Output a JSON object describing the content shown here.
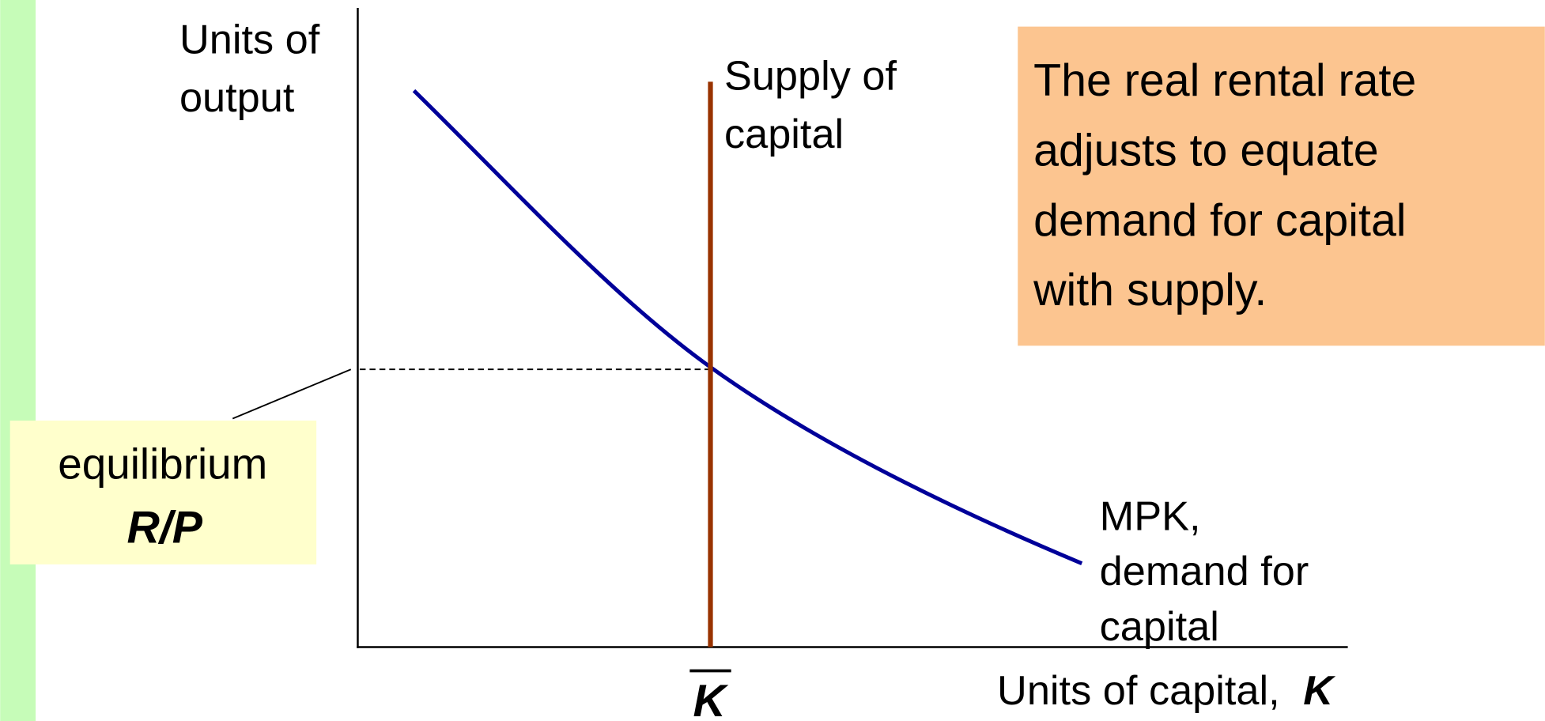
{
  "y_axis_label": [
    "Units of",
    "output"
  ],
  "supply_label": [
    "Supply of",
    "capital"
  ],
  "callout": [
    "The real rental rate",
    "adjusts to equate",
    "demand for capital",
    "with supply."
  ],
  "equilibrium_label": [
    "equilibrium",
    "R/P"
  ],
  "demand_label": [
    "MPK,",
    "demand for",
    "capital"
  ],
  "k_bar": "K",
  "x_axis_label": "Units of capital,",
  "x_axis_symbol": "K"
}
